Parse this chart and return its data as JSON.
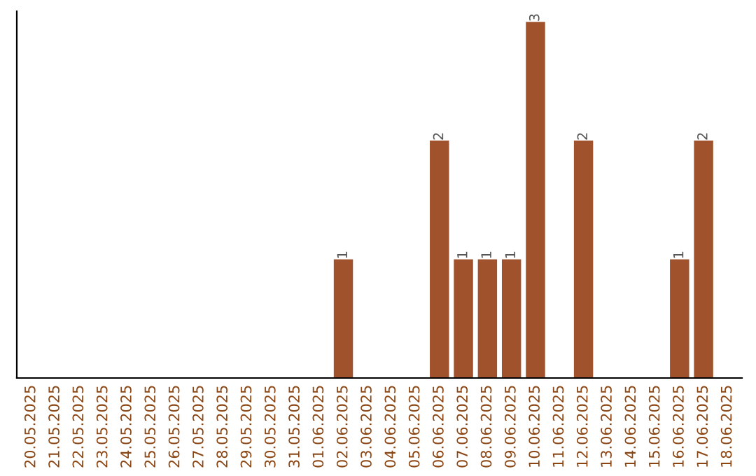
{
  "chart_data": {
    "type": "bar",
    "categories": [
      "20.05.2025",
      "21.05.2025",
      "22.05.2025",
      "23.05.2025",
      "24.05.2025",
      "25.05.2025",
      "26.05.2025",
      "27.05.2025",
      "28.05.2025",
      "29.05.2025",
      "30.05.2025",
      "31.05.2025",
      "01.06.2025",
      "02.06.2025",
      "03.06.2025",
      "04.06.2025",
      "05.06.2025",
      "06.06.2025",
      "07.06.2025",
      "08.06.2025",
      "09.06.2025",
      "10.06.2025",
      "11.06.2025",
      "12.06.2025",
      "13.06.2025",
      "14.06.2025",
      "15.06.2025",
      "16.06.2025",
      "17.06.2025",
      "18.06.2025"
    ],
    "values": [
      null,
      null,
      null,
      null,
      null,
      null,
      null,
      null,
      null,
      null,
      null,
      null,
      null,
      1,
      null,
      null,
      null,
      2,
      1,
      1,
      1,
      3,
      null,
      2,
      null,
      null,
      null,
      1,
      2,
      null
    ],
    "value_labels": [
      null,
      null,
      null,
      null,
      null,
      null,
      null,
      null,
      null,
      null,
      null,
      null,
      null,
      "1",
      null,
      null,
      null,
      "2",
      "1",
      "1",
      "1",
      "3",
      null,
      "2",
      null,
      null,
      null,
      "1",
      "2",
      null
    ],
    "color": "#a0522d",
    "grid": false,
    "legend": false
  }
}
